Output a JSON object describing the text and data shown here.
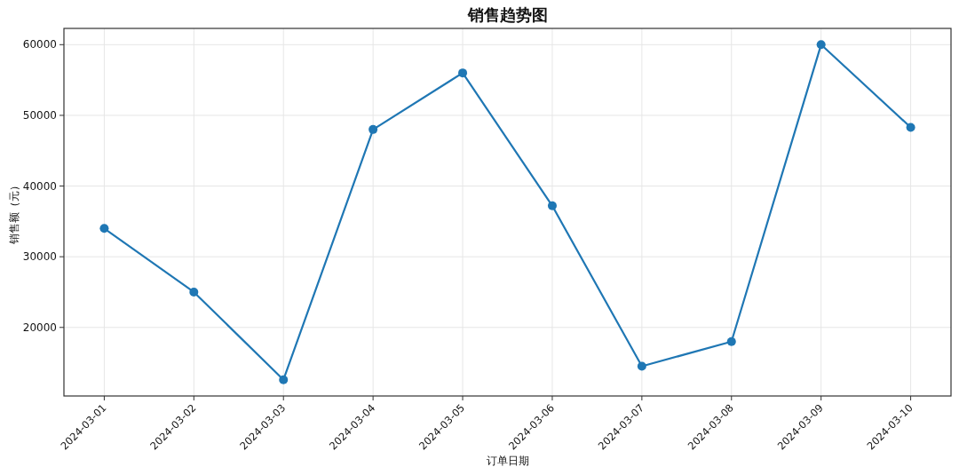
{
  "chart_data": {
    "type": "line",
    "title": "销售趋势图",
    "xlabel": "订单日期",
    "ylabel": "销售额（元）",
    "categories": [
      "2024-03-01",
      "2024-03-02",
      "2024-03-03",
      "2024-03-04",
      "2024-03-05",
      "2024-03-06",
      "2024-03-07",
      "2024-03-08",
      "2024-03-09",
      "2024-03-10"
    ],
    "series": [
      {
        "color": "#1f77b4",
        "values": [
          34000,
          25000,
          12600,
          48000,
          56000,
          37200,
          14500,
          18000,
          60000,
          48300
        ]
      }
    ],
    "ylim": [
      10300,
      62300
    ],
    "yticks": [
      20000,
      30000,
      40000,
      50000,
      60000
    ],
    "grid": true,
    "marker": "circle",
    "line_style": "solid"
  }
}
